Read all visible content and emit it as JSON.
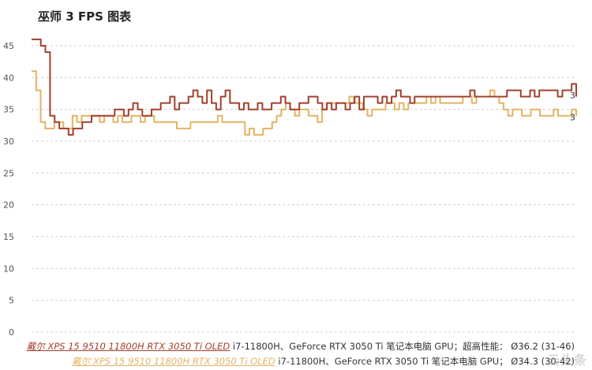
{
  "chart_data": {
    "type": "line",
    "title": "巫师 3 FPS 图表",
    "xlabel": "",
    "ylabel": "",
    "ylim": [
      0,
      45
    ],
    "yticks": [
      0,
      5,
      10,
      15,
      20,
      25,
      30,
      35,
      40,
      45
    ],
    "grid": true,
    "legend_position": "bottom-right",
    "series": [
      {
        "name": "戴尔 XPS 15 9510 11800H RTX 3050 Ti OLED",
        "spec": "i7-11800H、GeForce RTX 3050 Ti 笔记本电脑 GPU；超高性能：",
        "stat": "Ø36.2 (31-46)",
        "color": "#a0402e",
        "end_label": "3",
        "values": [
          46,
          46,
          45,
          44,
          34,
          33,
          32,
          32,
          31,
          32,
          32,
          33,
          33,
          34,
          34,
          34,
          34,
          34,
          35,
          35,
          34,
          35,
          36,
          35,
          34,
          34,
          35,
          35,
          36,
          36,
          37,
          35,
          36,
          36,
          37,
          38,
          37,
          36,
          38,
          36,
          35,
          37,
          38,
          36,
          36,
          35,
          36,
          35,
          35,
          36,
          35,
          35,
          36,
          36,
          37,
          36,
          35,
          35,
          36,
          36,
          37,
          37,
          36,
          35,
          36,
          35,
          36,
          36,
          35,
          36,
          37,
          35,
          37,
          37,
          37,
          36,
          37,
          36,
          37,
          38,
          37,
          37,
          36,
          37,
          37,
          37,
          37,
          37,
          37,
          37,
          37,
          37,
          37,
          37,
          37,
          38,
          37,
          37,
          37,
          37,
          37,
          37,
          37,
          38,
          38,
          38,
          37,
          37,
          38,
          37,
          38,
          38,
          38,
          38,
          37,
          38,
          38,
          39,
          37
        ]
      },
      {
        "name": "戴尔 XPS 15 9510 11800H RTX 3050 Ti OLED",
        "spec": "i7-11800H、GeForce RTX 3050 Ti 笔记本电脑 GPU；",
        "stat": "Ø34.3 (30-42)",
        "color": "#e3b364",
        "end_label": "3",
        "values": [
          41,
          38,
          33,
          32,
          32,
          33,
          33,
          32,
          32,
          34,
          33,
          34,
          34,
          34,
          34,
          33,
          34,
          34,
          33,
          34,
          33,
          33,
          34,
          34,
          33,
          34,
          34,
          33,
          33,
          33,
          33,
          33,
          32,
          32,
          32,
          33,
          33,
          33,
          33,
          33,
          33,
          34,
          33,
          33,
          33,
          33,
          33,
          31,
          32,
          31,
          31,
          32,
          32,
          33,
          34,
          35,
          36,
          35,
          34,
          35,
          35,
          34,
          34,
          33,
          35,
          36,
          36,
          36,
          36,
          36,
          37,
          36,
          36,
          35,
          34,
          35,
          35,
          35,
          36,
          36,
          35,
          36,
          35,
          36,
          36,
          36,
          36,
          37,
          36,
          37,
          36,
          36,
          36,
          36,
          36,
          37,
          37,
          36,
          37,
          37,
          37,
          38,
          37,
          36,
          35,
          34,
          35,
          35,
          34,
          34,
          35,
          35,
          34,
          34,
          34,
          35,
          34,
          34,
          34,
          35,
          34
        ]
      }
    ]
  },
  "watermark": "云头条"
}
